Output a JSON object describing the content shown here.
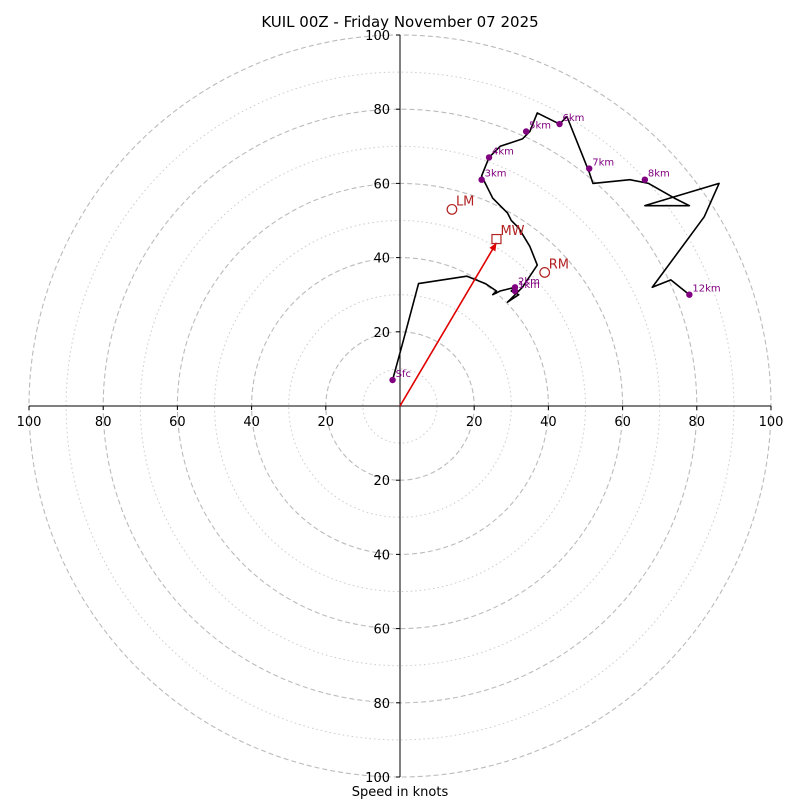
{
  "chart_data": {
    "type": "scatter",
    "subtype": "hodograph",
    "title": "KUIL 00Z - Friday November 07 2025",
    "xlabel": "Speed in knots",
    "ylabel": "",
    "xlim": [
      -100,
      100
    ],
    "ylim": [
      -100,
      100
    ],
    "ring_major_step": 20,
    "ring_minor_step": 10,
    "tick_labels": [
      "20",
      "40",
      "60",
      "80",
      "100"
    ],
    "grid": true,
    "colors": {
      "trace": "#000000",
      "height_points": "#800080",
      "storm_motion": "#b22222",
      "mean_wind_vector": "#e00000",
      "grid_major": "#bbbbbb",
      "grid_minor": "#cccccc"
    },
    "hodograph_trace": [
      [
        -2,
        7
      ],
      [
        1,
        18
      ],
      [
        5,
        33
      ],
      [
        18,
        35
      ],
      [
        23,
        33
      ],
      [
        26,
        31
      ],
      [
        25,
        30
      ],
      [
        27,
        31
      ],
      [
        31,
        32
      ],
      [
        30,
        31
      ],
      [
        32,
        30
      ],
      [
        29,
        28
      ],
      [
        33,
        32
      ],
      [
        35,
        35
      ],
      [
        37,
        38
      ],
      [
        35,
        43
      ],
      [
        32,
        48
      ],
      [
        30,
        50
      ],
      [
        29,
        52
      ],
      [
        27,
        54
      ],
      [
        25,
        56
      ],
      [
        24,
        58
      ],
      [
        23,
        60
      ],
      [
        22,
        62
      ],
      [
        24,
        67
      ],
      [
        27,
        70
      ],
      [
        30,
        71
      ],
      [
        33,
        72
      ],
      [
        35,
        74
      ],
      [
        37,
        79
      ],
      [
        43,
        76
      ],
      [
        45,
        78
      ],
      [
        49,
        68
      ],
      [
        51,
        63
      ],
      [
        52,
        60
      ],
      [
        62,
        61
      ],
      [
        67,
        60
      ],
      [
        74,
        56
      ],
      [
        78,
        54
      ],
      [
        72,
        54
      ],
      [
        66,
        54
      ],
      [
        86,
        60
      ],
      [
        82,
        51
      ],
      [
        68,
        32
      ],
      [
        73,
        34
      ],
      [
        78,
        30
      ]
    ],
    "height_points": [
      {
        "label": "Sfc",
        "x": -2,
        "y": 7
      },
      {
        "label": "1km",
        "x": 31,
        "y": 31
      },
      {
        "label": "2km",
        "x": 31,
        "y": 32
      },
      {
        "label": "3km",
        "x": 22,
        "y": 61
      },
      {
        "label": "4km",
        "x": 24,
        "y": 67
      },
      {
        "label": "5km",
        "x": 34,
        "y": 74
      },
      {
        "label": "6km",
        "x": 43,
        "y": 76
      },
      {
        "label": "7km",
        "x": 51,
        "y": 64
      },
      {
        "label": "8km",
        "x": 66,
        "y": 61
      },
      {
        "label": "12km",
        "x": 78,
        "y": 30
      }
    ],
    "storm_motion": [
      {
        "label": "LM",
        "x": 14,
        "y": 53,
        "marker": "circle"
      },
      {
        "label": "RM",
        "x": 39,
        "y": 36,
        "marker": "circle"
      },
      {
        "label": "MW",
        "x": 26,
        "y": 45,
        "marker": "square"
      }
    ],
    "mean_wind_vector": {
      "from": [
        0,
        0
      ],
      "to": [
        26,
        44
      ]
    }
  }
}
